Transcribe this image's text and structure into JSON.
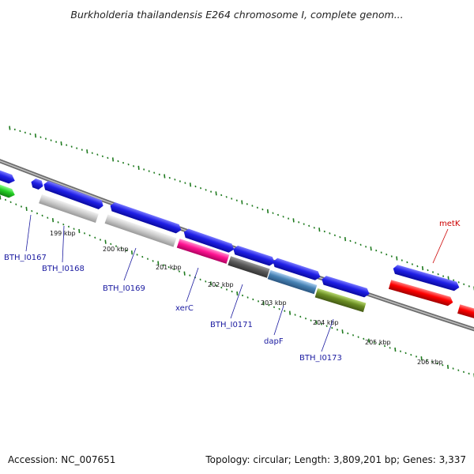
{
  "title": "Burkholderia thailandensis E264 chromosome I, complete genom...",
  "footer": {
    "accession": "Accession: NC_007651",
    "topology": "Topology: circular; Length: 3,809,201 bp; Genes: 3,337"
  },
  "colors": {
    "forward_gene": "#1f1fe6",
    "backbone": "#8a8a8a",
    "gc_tick": "#1e7a1e",
    "label_text": "#1a1aa0",
    "label_red": "#cc0000"
  },
  "scale_labels": [
    "199 kbp",
    "200 kbp",
    "201 kbp",
    "202 kbp",
    "203 kbp",
    "204 kbp",
    "205 kbp",
    "206 kbp"
  ],
  "genes": [
    {
      "label": "BTH_I0167",
      "strand": "forward",
      "color": "#1f1fe6"
    },
    {
      "label": "BTH_I0168",
      "strand": "forward",
      "color": "#1f1fe6"
    },
    {
      "label": "BTH_I0169",
      "strand": "forward",
      "color": "#1f1fe6"
    },
    {
      "label": "xerC",
      "strand": "reverse",
      "color": "#ff1493"
    },
    {
      "label": "BTH_I0171",
      "strand": "reverse",
      "color": "#555555"
    },
    {
      "label": "dapF",
      "strand": "reverse",
      "color": "#4682b4"
    },
    {
      "label": "BTH_I0173",
      "strand": "reverse",
      "color": "#6b8e23"
    },
    {
      "label": "metK",
      "strand": "reverse",
      "color": "#ff0000"
    }
  ]
}
